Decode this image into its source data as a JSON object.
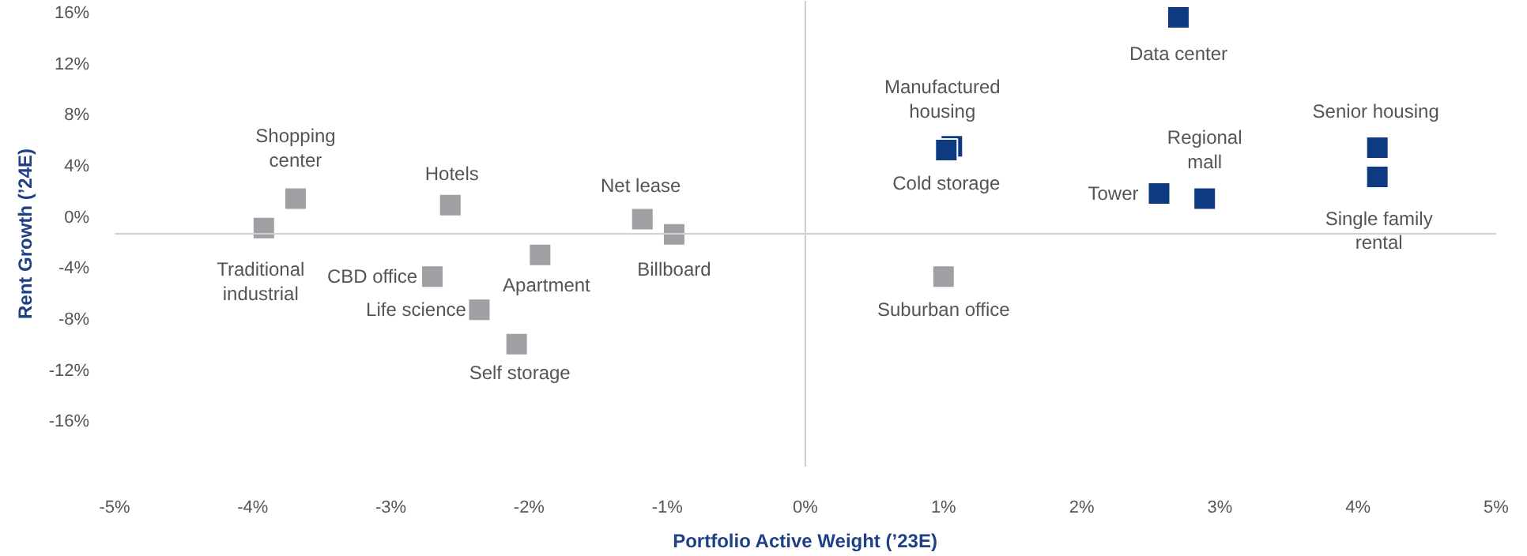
{
  "chart_data": {
    "type": "scatter",
    "xlabel": "Portfolio Active Weight (’23E)",
    "ylabel": "Rent Growth (’24E)",
    "xlim": [
      -5,
      5
    ],
    "xticks": [
      {
        "value": -5,
        "label": "-5%"
      },
      {
        "value": -4,
        "label": "-4%"
      },
      {
        "value": -3,
        "label": "-3%"
      },
      {
        "value": -2,
        "label": "-2%"
      },
      {
        "value": -1,
        "label": "-1%"
      },
      {
        "value": 0,
        "label": "0%"
      },
      {
        "value": 1,
        "label": "1%"
      },
      {
        "value": 2,
        "label": "2%"
      },
      {
        "value": 3,
        "label": "3%"
      },
      {
        "value": 4,
        "label": "4%"
      },
      {
        "value": 5,
        "label": "5%"
      }
    ],
    "ylim": [
      -19.5,
      17
    ],
    "yticks": [
      {
        "value": 16,
        "label": "16%"
      },
      {
        "value": 12,
        "label": "12%"
      },
      {
        "value": 8,
        "label": "8%"
      },
      {
        "value": 4,
        "label": "4%"
      },
      {
        "value": 0,
        "label": "0%"
      },
      {
        "value": -4,
        "label": "-4%"
      },
      {
        "value": -8,
        "label": "-8%"
      },
      {
        "value": -12,
        "label": "-12%"
      },
      {
        "value": -16,
        "label": "-16%"
      }
    ],
    "marker": "square",
    "grid": false,
    "ref_lines": [
      {
        "axis": "x",
        "value": 0,
        "color": "#d0d0d0"
      },
      {
        "axis": "y",
        "value": -1.25,
        "color": "#d0d0d0"
      }
    ],
    "series": [
      {
        "color": "#a0a0a4",
        "x": [
          -3.69,
          -3.92,
          -2.57,
          -2.7,
          -2.36,
          -1.92,
          -2.09,
          -1.18,
          -0.95,
          1.0
        ],
        "values": [
          1.5,
          -0.8,
          1.0,
          -4.6,
          -7.2,
          -2.9,
          -9.9,
          -0.1,
          -1.3,
          -4.6
        ]
      },
      {
        "color": "#0d3a80",
        "x": [
          2.7,
          1.06,
          1.02,
          2.56,
          2.89,
          4.14,
          4.14
        ],
        "values": [
          15.7,
          5.6,
          5.3,
          1.9,
          1.5,
          5.5,
          3.2
        ]
      }
    ],
    "annotations": [
      {
        "text": "Shopping\ncenter",
        "x": -3.69,
        "y": 1.5
      },
      {
        "text": "Traditional\nindustrial",
        "x": -3.92,
        "y": -0.8
      },
      {
        "text": "Hotels",
        "x": -2.57,
        "y": 1.0
      },
      {
        "text": "CBD office",
        "x": -2.7,
        "y": -4.6
      },
      {
        "text": "Life science",
        "x": -2.36,
        "y": -7.2
      },
      {
        "text": "Apartment",
        "x": -1.92,
        "y": -2.9
      },
      {
        "text": "Self storage",
        "x": -2.09,
        "y": -9.9
      },
      {
        "text": "Net lease",
        "x": -1.18,
        "y": -0.1
      },
      {
        "text": "Billboard",
        "x": -0.95,
        "y": -1.3
      },
      {
        "text": "Suburban office",
        "x": 1.0,
        "y": -4.6
      },
      {
        "text": "Data center",
        "x": 2.7,
        "y": 15.7
      },
      {
        "text": "Manufactured\nhousing",
        "x": 1.06,
        "y": 5.6
      },
      {
        "text": "Cold storage",
        "x": 1.02,
        "y": 5.3
      },
      {
        "text": "Tower",
        "x": 2.56,
        "y": 1.9
      },
      {
        "text": "Regional\nmall",
        "x": 2.89,
        "y": 1.5
      },
      {
        "text": "Senior housing",
        "x": 4.14,
        "y": 5.5
      },
      {
        "text": "Single family\nrental",
        "x": 4.14,
        "y": 3.2
      }
    ]
  }
}
